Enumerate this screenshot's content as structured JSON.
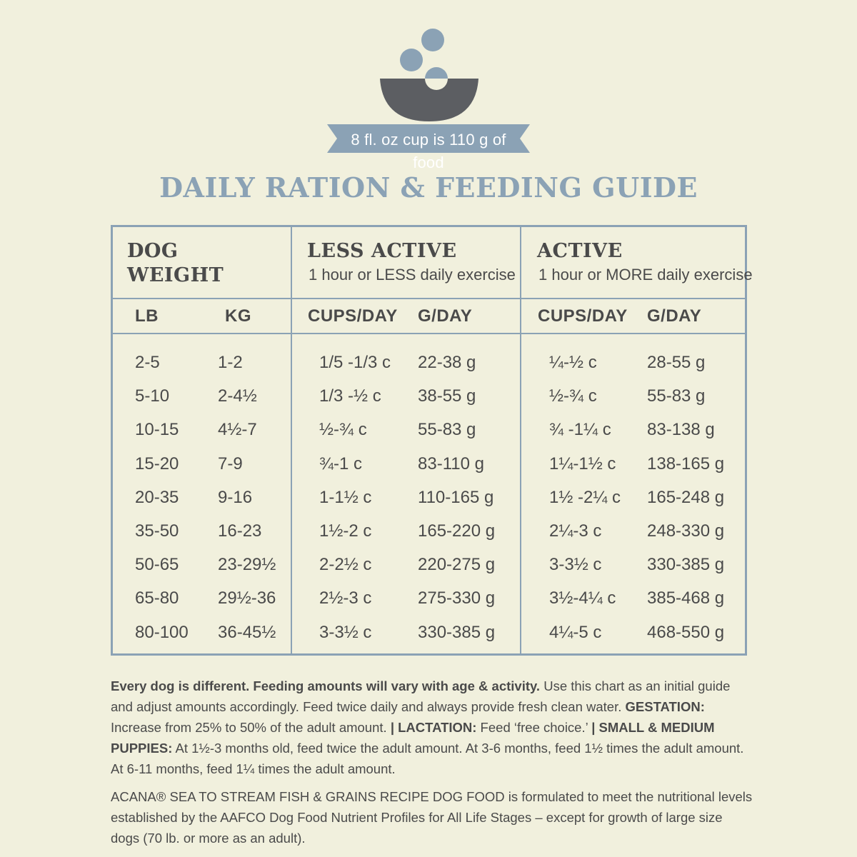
{
  "badge": {
    "text": "8 fl. oz cup is 110 g of food"
  },
  "title": "DAILY RATION & FEEDING GUIDE",
  "colors": {
    "accent": "#8ba2b5",
    "bowl": "#5c5e62",
    "background": "#f1f0dd",
    "text": "#4a4a4a"
  },
  "table": {
    "groups": [
      {
        "title_line1": "DOG",
        "title_line2": "WEIGHT",
        "subtitle": ""
      },
      {
        "title_line1": "LESS ACTIVE",
        "title_line2": "",
        "subtitle": "1 hour or LESS daily exercise"
      },
      {
        "title_line1": "ACTIVE",
        "title_line2": "",
        "subtitle": "1 hour or MORE daily exercise"
      }
    ],
    "columns": [
      "LB",
      "KG",
      "CUPS/DAY",
      "G/DAY",
      "CUPS/DAY",
      "G/DAY"
    ],
    "rows": [
      [
        "2-5",
        "1-2",
        "1/5 -1/3 c",
        "22-38 g",
        "¼-½ c",
        "28-55 g"
      ],
      [
        "5-10",
        "2-4½",
        "1/3 -½ c",
        "38-55 g",
        "½-¾ c",
        "55-83 g"
      ],
      [
        "10-15",
        "4½-7",
        "½-¾ c",
        "55-83 g",
        "¾ -1¼ c",
        "83-138 g"
      ],
      [
        "15-20",
        "7-9",
        "¾-1 c",
        "83-110 g",
        "1¼-1½ c",
        "138-165 g"
      ],
      [
        "20-35",
        "9-16",
        "1-1½ c",
        "110-165 g",
        "1½ -2¼ c",
        "165-248 g"
      ],
      [
        "35-50",
        "16-23",
        "1½-2 c",
        "165-220 g",
        "2¼-3 c",
        "248-330 g"
      ],
      [
        "50-65",
        "23-29½",
        "2-2½ c",
        "220-275 g",
        "3-3½ c",
        "330-385 g"
      ],
      [
        "65-80",
        "29½-36",
        "2½-3 c",
        "275-330 g",
        "3½-4¼ c",
        "385-468 g"
      ],
      [
        "80-100",
        "36-45½",
        "3-3½ c",
        "330-385 g",
        "4¼-5 c",
        "468-550 g"
      ]
    ]
  },
  "notes": {
    "p1_bold1": "Every dog is different. Feeding amounts will vary with age & activity.",
    "p1_text1": " Use this chart as an initial guide and adjust amounts accordingly. Feed twice daily and always provide fresh clean water. ",
    "p1_bold2": "GESTATION:",
    "p1_text2": " Increase from 25% to 50% of the adult amount. ",
    "p1_bold3": "| LACTATION:",
    "p1_text3": " Feed ‘free choice.’ ",
    "p1_bold4": "| SMALL & MEDIUM PUPPIES:",
    "p1_text4": " At 1½-3 months old, feed twice the adult amount. At 3-6 months, feed 1½ times the adult amount. At 6-11 months, feed 1¼ times the adult amount.",
    "p2": "ACANA® SEA TO STREAM FISH & GRAINS RECIPE DOG FOOD is formulated to meet the nutritional levels established by the AAFCO Dog Food Nutrient Profiles for All Life Stages – except for growth of large size dogs (70 lb. or more as an adult)."
  }
}
